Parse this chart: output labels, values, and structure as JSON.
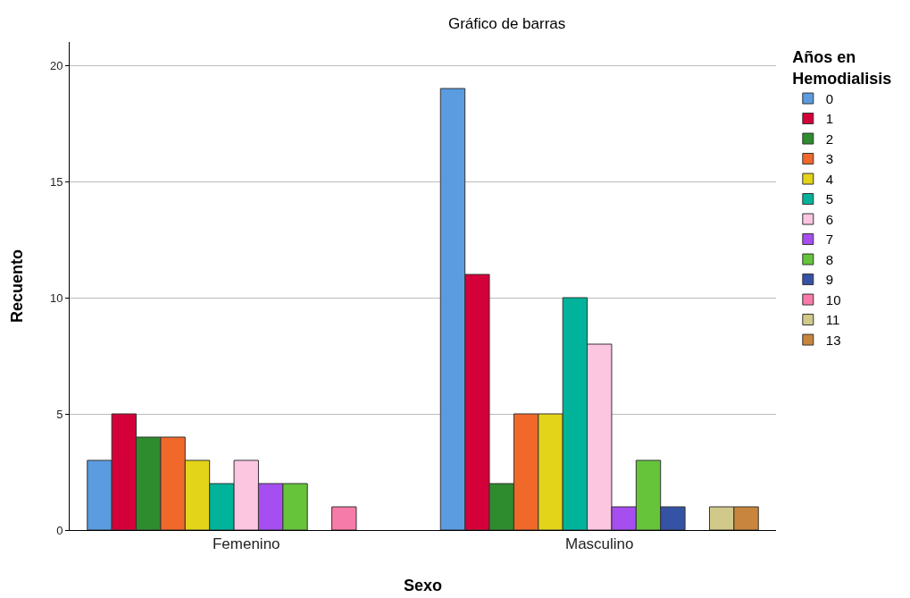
{
  "chart_data": {
    "type": "bar",
    "title": "Gráfico de barras",
    "xlabel": "Sexo",
    "ylabel": "Recuento",
    "legend_title": "Años en\nHemodialisis",
    "categories": [
      "Femenino",
      "Masculino"
    ],
    "series": [
      {
        "name": "0",
        "color": "#5b9be0",
        "values": [
          3,
          19
        ]
      },
      {
        "name": "1",
        "color": "#d4003a",
        "values": [
          5,
          11
        ]
      },
      {
        "name": "2",
        "color": "#2e8b2e",
        "values": [
          4,
          2
        ]
      },
      {
        "name": "3",
        "color": "#f0682a",
        "values": [
          4,
          5
        ]
      },
      {
        "name": "4",
        "color": "#e3d319",
        "values": [
          3,
          5
        ]
      },
      {
        "name": "5",
        "color": "#00b39a",
        "values": [
          2,
          10
        ]
      },
      {
        "name": "6",
        "color": "#fcc5e0",
        "values": [
          3,
          8
        ]
      },
      {
        "name": "7",
        "color": "#a64ef0",
        "values": [
          2,
          1
        ]
      },
      {
        "name": "8",
        "color": "#66c43a",
        "values": [
          2,
          3
        ]
      },
      {
        "name": "9",
        "color": "#3553a5",
        "values": [
          null,
          1
        ]
      },
      {
        "name": "10",
        "color": "#f77ba8",
        "values": [
          1,
          null
        ]
      },
      {
        "name": "11",
        "color": "#d1c98a",
        "values": [
          null,
          1
        ]
      },
      {
        "name": "13",
        "color": "#c8853e",
        "values": [
          null,
          1
        ]
      }
    ],
    "ylim": [
      0,
      21
    ],
    "yticks": [
      0,
      5,
      10,
      15,
      20
    ],
    "grid": "y",
    "legend": "top right"
  }
}
